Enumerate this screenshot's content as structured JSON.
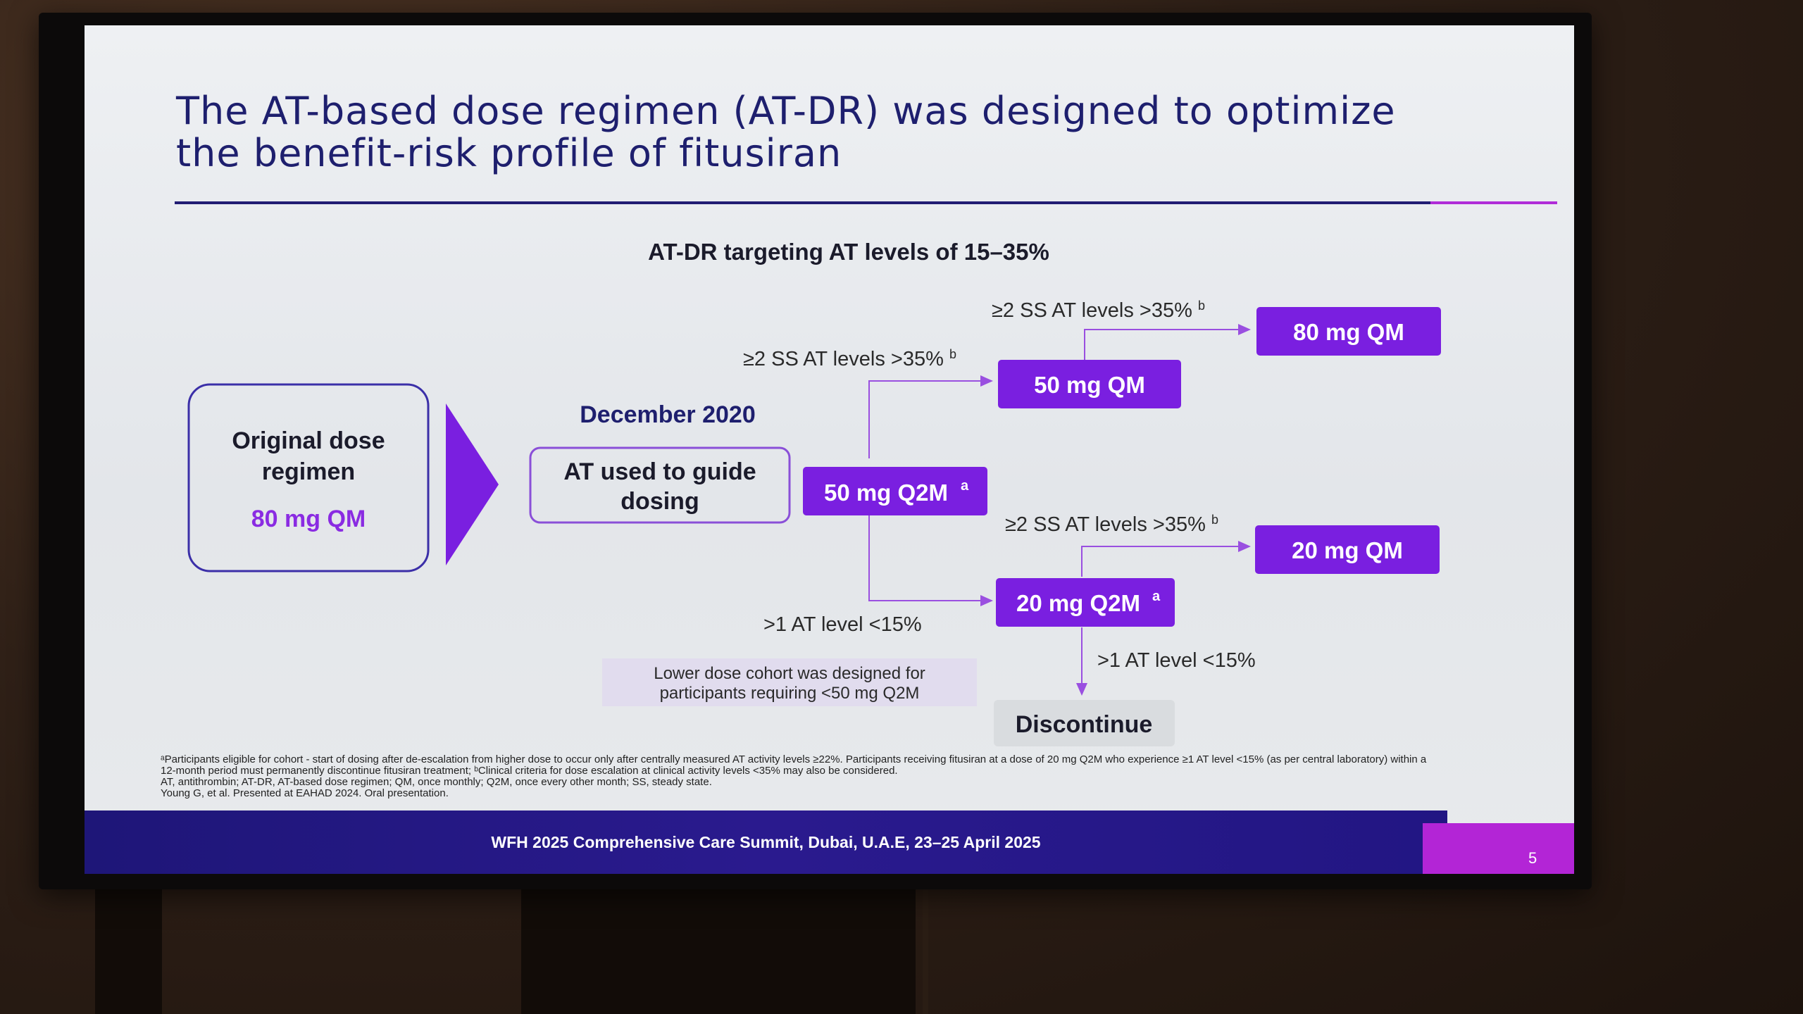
{
  "slide": {
    "title": "The AT-based dose regimen (AT-DR) was designed to optimize the benefit-risk profile of fitusiran",
    "subtitle": "AT-DR targeting AT levels of 15–35%",
    "original_label_line1": "Original dose",
    "original_label_line2": "regimen",
    "original_dose": "80 mg QM",
    "date_label": "December 2020",
    "guide_line1": "AT used to guide",
    "guide_line2": "dosing",
    "start_dose": "50 mg Q2M",
    "start_dose_sup": "a",
    "dose_50qm": "50 mg QM",
    "dose_80qm": "80 mg QM",
    "dose_20q2m": "20 mg Q2M",
    "dose_20q2m_sup": "a",
    "dose_20qm": "20 mg QM",
    "discontinue": "Discontinue",
    "cond_up_top": "≥2 SS AT levels >35%",
    "cond_up_top_sup": "b",
    "cond_up_mid": "≥2 SS AT levels >35%",
    "cond_up_mid_sup": "b",
    "cond_up_low": "≥2 SS AT levels >35%",
    "cond_up_low_sup": "b",
    "cond_down": ">1 AT level <15%",
    "cond_discontinue": ">1 AT level <15%",
    "note_line1": "Lower dose cohort was designed for",
    "note_line2": "participants requiring <50 mg Q2M",
    "footnote_lines": [
      "ᵃParticipants eligible for cohort - start of dosing after de-escalation from higher dose to occur only after centrally measured AT activity levels ≥22%. Participants receiving fitusiran at a dose of 20 mg Q2M who experience ≥1 AT level <15% (as per central laboratory) within a",
      "12-month period must permanently discontinue fitusiran treatment; ᵇClinical criteria for dose escalation at clinical activity levels <35% may also be considered.",
      "AT, antithrombin; AT-DR, AT-based dose regimen; QM, once monthly; Q2M, once every other month; SS, steady state.",
      "Young G, et al. Presented at EAHAD 2024. Oral presentation."
    ],
    "footer": "WFH 2025 Comprehensive Care Summit, Dubai, U.A.E, 23–25 April 2025",
    "page_number": "5"
  },
  "colors": {
    "title_navy": "#1e1f6e",
    "dose_box_purple": "#7a1fe0",
    "dose_text_purple": "#8a2be2",
    "connector_purple": "#9a4fe0",
    "footer_navy": "#221683",
    "footer_magenta": "#b325d6",
    "discontinue_bg": "#d9dcdf",
    "note_bg": "#e1dcee"
  }
}
